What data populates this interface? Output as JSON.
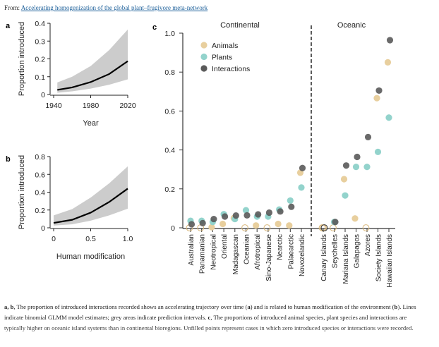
{
  "header": {
    "from_label": "From:",
    "article_link": "Accelerating homogenization of the global plant–frugivore meta-network"
  },
  "colors": {
    "animals": "#e8cf9e",
    "plants": "#93d3cc",
    "interactions": "#5a5a5a",
    "band": "#cccccc",
    "line": "#000000"
  },
  "chart_data": [
    {
      "panel": "a",
      "type": "line",
      "ylabel": "Proportion introduced",
      "xlabel": "Year",
      "xlim": [
        1940,
        2020
      ],
      "ylim": [
        0,
        0.4
      ],
      "xticks": [
        "1940",
        "1980",
        "2020"
      ],
      "yticks": [
        "0",
        "0.1",
        "0.2",
        "0.3",
        "0.4"
      ],
      "x": [
        1944,
        1960,
        1980,
        2000,
        2020
      ],
      "estimate": [
        0.026,
        0.04,
        0.07,
        0.115,
        0.187
      ],
      "lower": [
        0.01,
        0.018,
        0.033,
        0.055,
        0.085
      ],
      "upper": [
        0.068,
        0.1,
        0.16,
        0.25,
        0.365
      ]
    },
    {
      "panel": "b",
      "type": "line",
      "ylabel": "Proportion introduced",
      "xlabel": "Human modification",
      "xlim": [
        0,
        1
      ],
      "ylim": [
        0,
        0.8
      ],
      "xticks": [
        "0",
        "0.5",
        "1.0"
      ],
      "yticks": [
        "0",
        "0.2",
        "0.4",
        "0.6",
        "0.8"
      ],
      "x": [
        0,
        0.25,
        0.5,
        0.75,
        1.0
      ],
      "estimate": [
        0.055,
        0.09,
        0.17,
        0.29,
        0.44
      ],
      "lower": [
        0.025,
        0.04,
        0.08,
        0.14,
        0.215
      ],
      "upper": [
        0.14,
        0.21,
        0.34,
        0.5,
        0.69
      ]
    },
    {
      "panel": "c",
      "type": "scatter",
      "ylim": [
        0,
        1.0
      ],
      "yticks": [
        "0",
        "0.2",
        "0.4",
        "0.6",
        "0.8",
        "1.0"
      ],
      "legend": [
        "Animals",
        "Plants",
        "Interactions"
      ],
      "legend_position": "top-left",
      "groups": [
        {
          "title": "Continental",
          "categories": [
            "Australian",
            "Panamanian",
            "Neotropical",
            "Oriental",
            "Madagascan",
            "Oceanian",
            "Afrotropical",
            "Sino-Japanese",
            "Nearctic",
            "Palaearctic",
            "Novozelandic"
          ],
          "animals": [
            0,
            0,
            0.003,
            0.02,
            0.05,
            0,
            0.012,
            0,
            0.02,
            0.012,
            0.283
          ],
          "plants": [
            0.036,
            0.036,
            0.03,
            0.07,
            0.045,
            0.09,
            0.058,
            0.058,
            0.094,
            0.14,
            0.207
          ],
          "interactions": [
            0.018,
            0.024,
            0.045,
            0.058,
            0.063,
            0.064,
            0.069,
            0.078,
            0.084,
            0.108,
            0.307
          ]
        },
        {
          "title": "Oceanic",
          "categories": [
            "Canary Islands",
            "Seychelles",
            "Mariana Islands",
            "Galapagos",
            "Azores",
            "Society Islands",
            "Hawaiian Islands"
          ],
          "animals": [
            0,
            0,
            0.25,
            0.048,
            0,
            0.666,
            0.85
          ],
          "plants": [
            0,
            0.03,
            0.166,
            0.313,
            0.313,
            0.39,
            0.566
          ],
          "interactions": [
            0,
            0.03,
            0.32,
            0.364,
            0.466,
            0.705,
            0.964
          ]
        }
      ]
    }
  ],
  "panel_labels": {
    "a": "a",
    "b": "b",
    "c": "c"
  },
  "caption": {
    "a_b": "a, b",
    "text1": ", The proportion of introduced interactions recorded shows an accelerating trajectory over time (",
    "a": "a",
    "text2": ") and is related to human modification of the environment (",
    "b": "b",
    "text3": "). Lines indicate binomial GLMM model estimates; grey areas indicate prediction intervals. ",
    "c": "c",
    "text4": ", The proportions of introduced animal species, plant species and interactions are typically higher on oceanic island systems than in continental bioregions. Unfilled points represent cases in which zero introduced species or interactions were recorded."
  }
}
